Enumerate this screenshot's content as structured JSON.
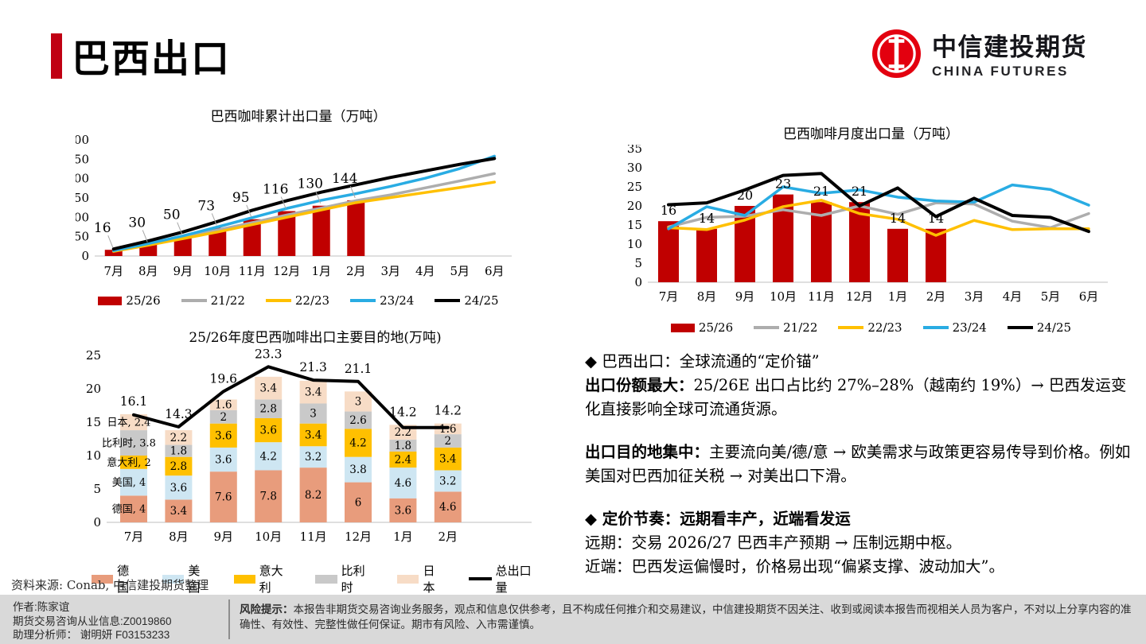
{
  "header": {
    "title": "巴西出口",
    "logo_cn": "中信建投期货",
    "logo_en": "CHINA FUTURES"
  },
  "colors": {
    "accent_red": "#C00013",
    "bar_red": "#C00000",
    "line_gray": "#ADADAD",
    "line_yellow": "#FFC000",
    "line_blue": "#29ACE3",
    "line_black": "#000000",
    "logo_red": "#E3000F",
    "footer_bg": "#D9D9D9"
  },
  "chart_data": [
    {
      "type": "bar+line",
      "title": "巴西咖啡累计出口量（万吨）",
      "categories": [
        "7月",
        "8月",
        "9月",
        "10月",
        "11月",
        "12月",
        "1月",
        "2月",
        "3月",
        "4月",
        "5月",
        "6月"
      ],
      "ylim": [
        0,
        300
      ],
      "ytick": 50,
      "grid": false,
      "legend_position": "bottom",
      "bar": {
        "name": "25/26",
        "color": "#C00000",
        "values": [
          16,
          30,
          50,
          73,
          95,
          116,
          130,
          144
        ]
      },
      "lines": [
        {
          "name": "21/22",
          "color": "#ADADAD",
          "values": [
            13,
            30,
            48,
            67,
            86,
            106,
            124,
            143,
            158,
            176,
            194,
            213
          ]
        },
        {
          "name": "22/23",
          "color": "#FFC000",
          "values": [
            12,
            28,
            45,
            62,
            81,
            100,
            119,
            138,
            151,
            164,
            177,
            191
          ]
        },
        {
          "name": "23/24",
          "color": "#29ACE3",
          "values": [
            14,
            32,
            52,
            75,
            99,
            123,
            144,
            161,
            180,
            201,
            226,
            258
          ]
        },
        {
          "name": "24/25",
          "color": "#000000",
          "values": [
            18,
            39,
            62,
            89,
            118,
            143,
            165,
            184,
            203,
            220,
            237,
            252
          ]
        }
      ],
      "legend": [
        {
          "label": "25/26",
          "type": "bar",
          "color": "#C00000"
        },
        {
          "label": "21/22",
          "type": "line",
          "color": "#ADADAD"
        },
        {
          "label": "22/23",
          "type": "line",
          "color": "#FFC000"
        },
        {
          "label": "23/24",
          "type": "line",
          "color": "#29ACE3"
        },
        {
          "label": "24/25",
          "type": "line",
          "color": "#000000"
        }
      ]
    },
    {
      "type": "bar+line",
      "title": "巴西咖啡月度出口量（万吨）",
      "categories": [
        "7月",
        "8月",
        "9月",
        "10月",
        "11月",
        "12月",
        "1月",
        "2月",
        "3月",
        "4月",
        "5月",
        "6月"
      ],
      "ylim": [
        0,
        35
      ],
      "ytick": 5,
      "grid": false,
      "legend_position": "bottom",
      "bar": {
        "name": "25/26",
        "color": "#C00000",
        "values": [
          16,
          14,
          20,
          23,
          21,
          21,
          14,
          14
        ]
      },
      "lines": [
        {
          "name": "21/22",
          "color": "#ADADAD",
          "values": [
            14.5,
            17,
            17.3,
            19,
            17.5,
            20,
            17.8,
            20.8,
            20.5,
            16,
            14.3,
            18
          ]
        },
        {
          "name": "22/23",
          "color": "#FFC000",
          "values": [
            14.3,
            13.8,
            16.3,
            19.8,
            21.5,
            18,
            16.5,
            12.3,
            16.2,
            13.8,
            14,
            14
          ]
        },
        {
          "name": "23/24",
          "color": "#29ACE3",
          "values": [
            14,
            19.8,
            17.5,
            25,
            23.3,
            24.2,
            22.3,
            21.3,
            21,
            25.5,
            24.3,
            20.2
          ]
        },
        {
          "name": "24/25",
          "color": "#000000",
          "values": [
            20.3,
            20.8,
            24.2,
            28,
            28.5,
            20,
            24.7,
            17.2,
            22,
            17.5,
            17,
            13.3
          ]
        }
      ],
      "legend": [
        {
          "label": "25/26",
          "type": "bar",
          "color": "#C00000"
        },
        {
          "label": "21/22",
          "type": "line",
          "color": "#ADADAD"
        },
        {
          "label": "22/23",
          "type": "line",
          "color": "#FFC000"
        },
        {
          "label": "23/24",
          "type": "line",
          "color": "#29ACE3"
        },
        {
          "label": "24/25",
          "type": "line",
          "color": "#000000"
        }
      ]
    },
    {
      "type": "stacked-bar+line",
      "title": "25/26年度巴西咖啡出口主要目的地(万吨)",
      "categories": [
        "7月",
        "8月",
        "9月",
        "10月",
        "11月",
        "12月",
        "1月",
        "2月"
      ],
      "ylim": [
        0,
        25
      ],
      "ytick": 5,
      "grid": false,
      "legend_position": "bottom",
      "stacks": [
        {
          "name": "德国",
          "color": "#E89C7C",
          "values": [
            4,
            3.4,
            7.6,
            7.8,
            8.2,
            6,
            3.6,
            4.6
          ]
        },
        {
          "name": "美国",
          "color": "#CEE6F2",
          "values": [
            4,
            3.6,
            3.6,
            4.2,
            3.2,
            3.8,
            4.6,
            3.2
          ]
        },
        {
          "name": "意大利",
          "color": "#FFC000",
          "values": [
            2,
            2.8,
            3.6,
            3.6,
            3.4,
            4.2,
            2.4,
            3.4
          ]
        },
        {
          "name": "比利时",
          "color": "#C9C9C9",
          "values": [
            3.8,
            1.8,
            2,
            2.8,
            3,
            2.6,
            1.8,
            2
          ]
        },
        {
          "name": "日本",
          "color": "#F7DCC6",
          "values": [
            2.4,
            2.2,
            1.6,
            3.4,
            3.4,
            3,
            2.2,
            1.6
          ]
        }
      ],
      "total_line": {
        "name": "总出口量",
        "color": "#000000",
        "values": [
          16.1,
          14.3,
          19.6,
          23.3,
          21.3,
          21.1,
          14.2,
          14.2
        ]
      },
      "legend": [
        {
          "label": "德国",
          "type": "bar",
          "color": "#E89C7C"
        },
        {
          "label": "美国",
          "type": "bar",
          "color": "#CEE6F2"
        },
        {
          "label": "意大利",
          "type": "bar",
          "color": "#FFC000"
        },
        {
          "label": "比利时",
          "type": "bar",
          "color": "#C9C9C9"
        },
        {
          "label": "日本",
          "type": "bar",
          "color": "#F7DCC6"
        },
        {
          "label": "总出口量",
          "type": "line",
          "color": "#000000"
        }
      ]
    }
  ],
  "insights": {
    "bullet1": "◆ 巴西出口：全球流通的“定价锚”",
    "p1_label": "出口份额最大：",
    "p1_text": "25/26E 出口占比约 27%–28%（越南约 19%）→ 巴西发运变化直接影响全球可流通货源。",
    "p2_label": "出口目的地集中：",
    "p2_text": "主要流向美/德/意 → 欧美需求与政策更容易传导到价格。例如美国对巴西加征关税 → 对美出口下滑。",
    "bullet2": "◆ 定价节奏：远期看丰产，近端看发运",
    "p3": "远期：交易 2026/27 巴西丰产预期 → 压制远期中枢。",
    "p4": "近端：巴西发运偏慢时，价格易出现“偏紧支撑、波动加大”。"
  },
  "footer": {
    "source": "资料来源: Conab, 中信建投期货整理",
    "author_line1": "作者:陈家谊",
    "author_line2": "期货交易咨询从业信息:Z0019860",
    "author_line3": "助理分析师： 谢明妍 F03153233",
    "risk_label": "风险提示：",
    "risk_text": "本报告非期货交易咨询业务服务，观点和信息仅供参考，且不构成任何推介和交易建议，中信建投期货不因关注、收到或阅读本报告而视相关人员为客户，不对以上分享内容的准确性、有效性、完整性做任何保证。期市有风险、入市需谨慎。"
  }
}
